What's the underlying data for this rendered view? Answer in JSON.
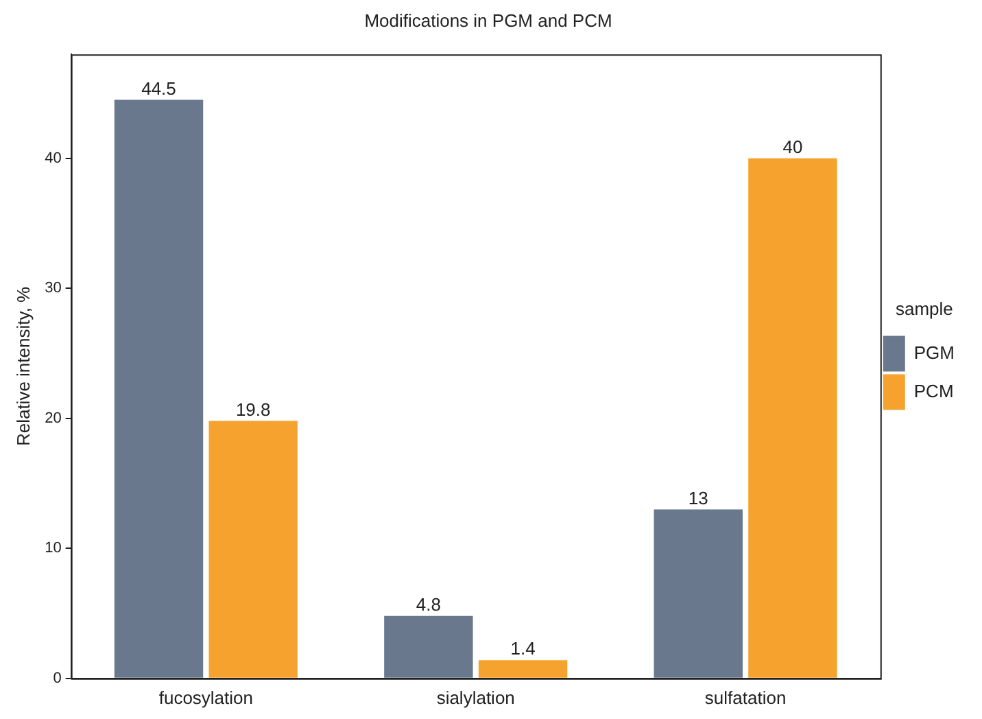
{
  "chart_data": {
    "type": "bar",
    "title": "Modifications in PGM and PCM",
    "ylabel": "Relative intensity, %",
    "legend_title": "sample",
    "categories": [
      "fucosylation",
      "sialylation",
      "sulfatation"
    ],
    "series": [
      {
        "name": "PGM",
        "color": "#69788c",
        "values": [
          44.5,
          4.8,
          13
        ]
      },
      {
        "name": "PCM",
        "color": "#f5a32e",
        "values": [
          19.8,
          1.4,
          40
        ]
      }
    ],
    "ylim": [
      0,
      48
    ],
    "yticks": [
      0,
      10,
      20,
      30,
      40
    ],
    "grid": false,
    "legend": "right",
    "data_labels": true
  }
}
